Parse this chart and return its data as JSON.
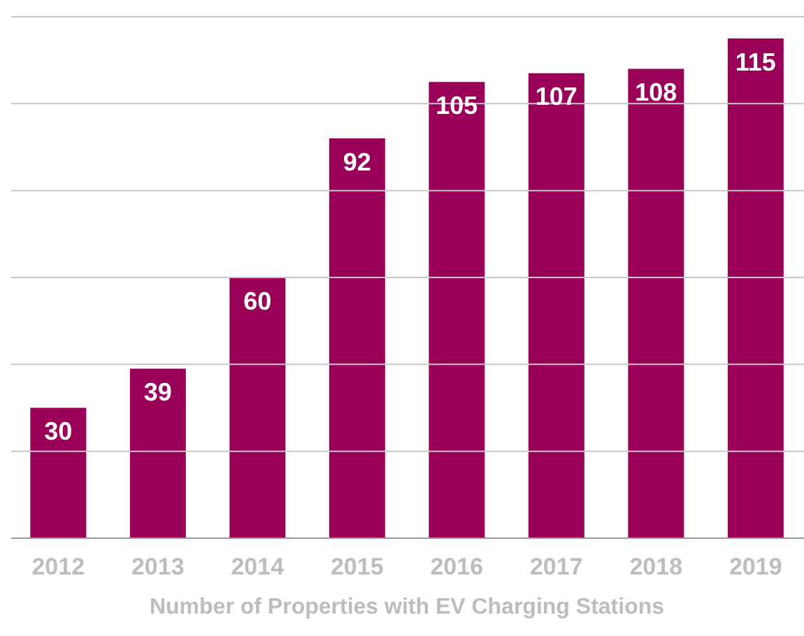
{
  "chart_data": {
    "type": "bar",
    "xlabel": "Number of Properties with EV Charging Stations",
    "categories": [
      "2012",
      "2013",
      "2014",
      "2015",
      "2016",
      "2017",
      "2018",
      "2019"
    ],
    "values": [
      30,
      39,
      60,
      92,
      105,
      107,
      108,
      115
    ],
    "color": "#9b0058",
    "ylim": [
      0,
      120
    ],
    "yticks": [
      {
        "value": 0,
        "label": null
      },
      {
        "value": 20,
        "label": null
      },
      {
        "value": 40,
        "label": null
      },
      {
        "value": 60,
        "label": null
      },
      {
        "value": 80,
        "label": null
      },
      {
        "value": 100,
        "label": null
      },
      {
        "value": 120,
        "label": null
      }
    ],
    "grid": "y",
    "tick_labels": "x",
    "data_labels": true
  }
}
